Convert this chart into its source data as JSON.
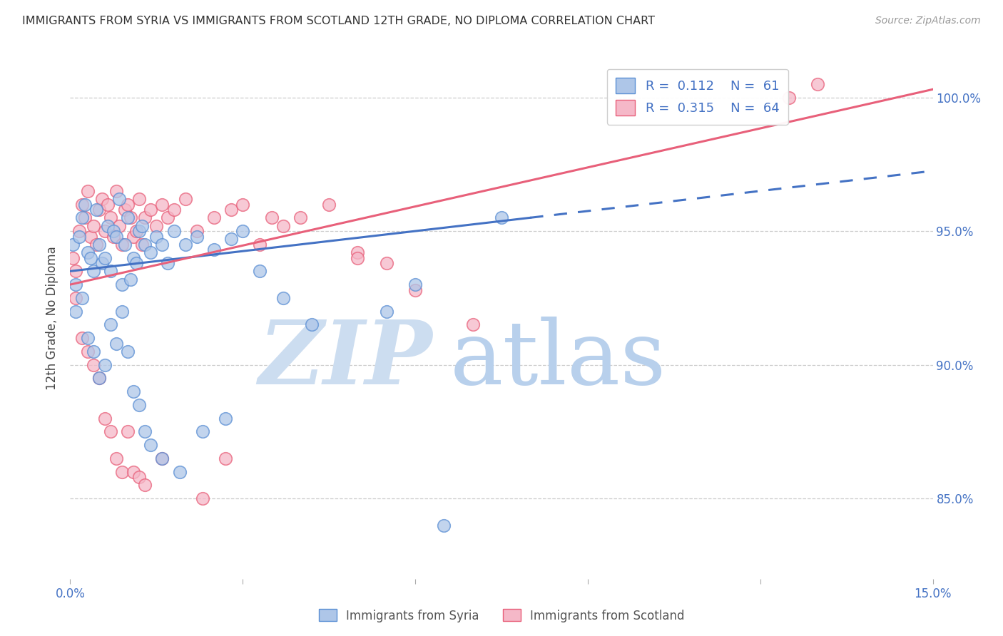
{
  "title": "IMMIGRANTS FROM SYRIA VS IMMIGRANTS FROM SCOTLAND 12TH GRADE, NO DIPLOMA CORRELATION CHART",
  "source_text": "Source: ZipAtlas.com",
  "ylabel": "12th Grade, No Diploma",
  "xmin": 0.0,
  "xmax": 15.0,
  "ymin": 82.0,
  "ymax": 101.5,
  "yticks": [
    85.0,
    90.0,
    95.0,
    100.0
  ],
  "ytick_labels": [
    "85.0%",
    "90.0%",
    "95.0%",
    "100.0%"
  ],
  "legend_r1": "R =  0.112",
  "legend_n1": "N =  61",
  "legend_r2": "R =  0.315",
  "legend_n2": "N =  64",
  "syria_color": "#aec6e8",
  "scotland_color": "#f5b8c8",
  "syria_edge_color": "#5b8fd4",
  "scotland_edge_color": "#e8607a",
  "syria_line_color": "#4472c4",
  "scotland_line_color": "#e8607a",
  "watermark_zip_color": "#ccddf0",
  "watermark_atlas_color": "#b8d0ec",
  "syria_line_x0": 0.0,
  "syria_line_y0": 93.5,
  "syria_line_x1": 8.0,
  "syria_line_y1": 95.5,
  "syria_solid_xmax": 8.0,
  "syria_dashed_xmax": 15.0,
  "scotland_line_x0": 0.0,
  "scotland_line_y0": 93.0,
  "scotland_line_x1": 15.0,
  "scotland_line_y1": 100.3,
  "syria_scatter_x": [
    0.05,
    0.1,
    0.15,
    0.2,
    0.25,
    0.3,
    0.35,
    0.4,
    0.45,
    0.5,
    0.55,
    0.6,
    0.65,
    0.7,
    0.75,
    0.8,
    0.85,
    0.9,
    0.95,
    1.0,
    1.05,
    1.1,
    1.15,
    1.2,
    1.25,
    1.3,
    1.4,
    1.5,
    1.6,
    1.7,
    1.8,
    2.0,
    2.2,
    2.5,
    2.8,
    3.0,
    3.3,
    3.7,
    4.2,
    5.5,
    6.0,
    7.5,
    0.1,
    0.2,
    0.3,
    0.4,
    0.5,
    0.6,
    0.7,
    0.8,
    0.9,
    1.0,
    1.1,
    1.2,
    1.3,
    1.4,
    1.6,
    1.9,
    2.3,
    2.7,
    6.5
  ],
  "syria_scatter_y": [
    94.5,
    93.0,
    94.8,
    95.5,
    96.0,
    94.2,
    94.0,
    93.5,
    95.8,
    94.5,
    93.8,
    94.0,
    95.2,
    93.5,
    95.0,
    94.8,
    96.2,
    93.0,
    94.5,
    95.5,
    93.2,
    94.0,
    93.8,
    95.0,
    95.2,
    94.5,
    94.2,
    94.8,
    94.5,
    93.8,
    95.0,
    94.5,
    94.8,
    94.3,
    94.7,
    95.0,
    93.5,
    92.5,
    91.5,
    92.0,
    93.0,
    95.5,
    92.0,
    92.5,
    91.0,
    90.5,
    89.5,
    90.0,
    91.5,
    90.8,
    92.0,
    90.5,
    89.0,
    88.5,
    87.5,
    87.0,
    86.5,
    86.0,
    87.5,
    88.0,
    84.0
  ],
  "scotland_scatter_x": [
    0.05,
    0.1,
    0.15,
    0.2,
    0.25,
    0.3,
    0.35,
    0.4,
    0.45,
    0.5,
    0.55,
    0.6,
    0.65,
    0.7,
    0.75,
    0.8,
    0.85,
    0.9,
    0.95,
    1.0,
    1.05,
    1.1,
    1.15,
    1.2,
    1.25,
    1.3,
    1.4,
    1.5,
    1.6,
    1.7,
    1.8,
    2.0,
    2.2,
    2.5,
    2.8,
    3.0,
    3.3,
    3.7,
    4.0,
    4.5,
    5.0,
    5.5,
    6.0,
    7.0,
    0.1,
    0.2,
    0.3,
    0.4,
    0.5,
    0.6,
    0.7,
    0.8,
    0.9,
    1.0,
    1.1,
    1.2,
    1.3,
    1.6,
    2.3,
    2.7,
    3.5,
    5.0,
    12.5,
    13.0
  ],
  "scotland_scatter_y": [
    94.0,
    93.5,
    95.0,
    96.0,
    95.5,
    96.5,
    94.8,
    95.2,
    94.5,
    95.8,
    96.2,
    95.0,
    96.0,
    95.5,
    94.8,
    96.5,
    95.2,
    94.5,
    95.8,
    96.0,
    95.5,
    94.8,
    95.0,
    96.2,
    94.5,
    95.5,
    95.8,
    95.2,
    96.0,
    95.5,
    95.8,
    96.2,
    95.0,
    95.5,
    95.8,
    96.0,
    94.5,
    95.2,
    95.5,
    96.0,
    94.2,
    93.8,
    92.8,
    91.5,
    92.5,
    91.0,
    90.5,
    90.0,
    89.5,
    88.0,
    87.5,
    86.5,
    86.0,
    87.5,
    86.0,
    85.8,
    85.5,
    86.5,
    85.0,
    86.5,
    95.5,
    94.0,
    100.0,
    100.5
  ]
}
